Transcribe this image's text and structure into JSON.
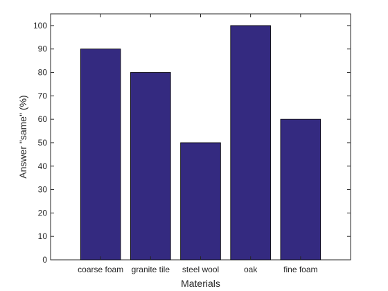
{
  "chart_data": {
    "type": "bar",
    "title": "",
    "xlabel": "Materials",
    "ylabel": "Answer \"same\" (%)",
    "categories": [
      "coarse foam",
      "granite tile",
      "steel wool",
      "oak",
      "fine foam"
    ],
    "values": [
      90,
      80,
      50,
      100,
      60
    ],
    "ylim": [
      0,
      105
    ],
    "yticks": [
      0,
      10,
      20,
      30,
      40,
      50,
      60,
      70,
      80,
      90,
      100
    ],
    "bar_color": "#342a80",
    "grid": false,
    "legend": "none"
  }
}
